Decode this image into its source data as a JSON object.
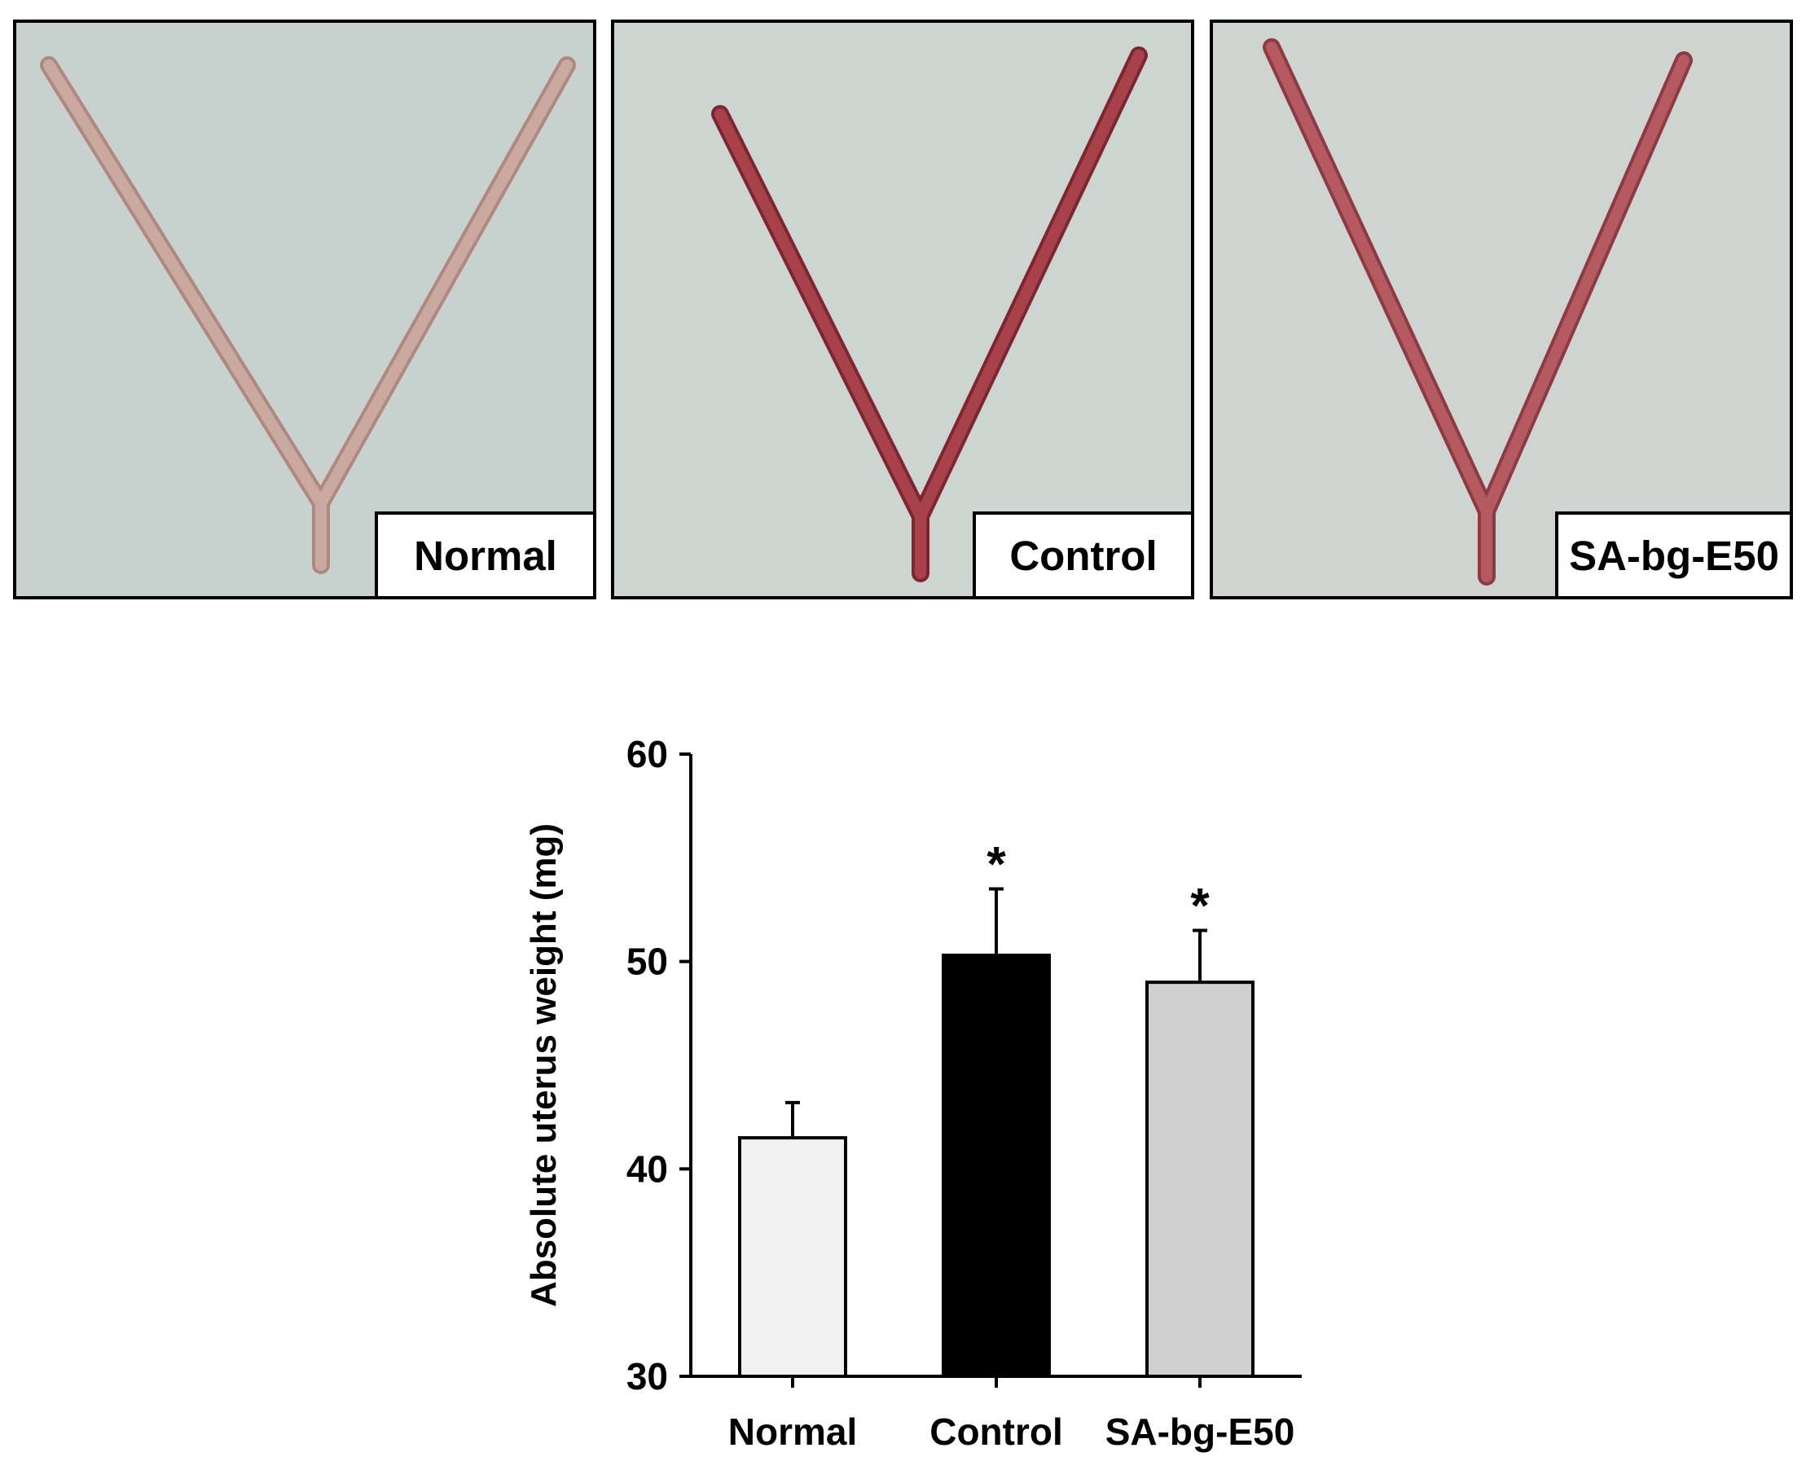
{
  "panels": [
    {
      "label": "Normal",
      "tissue_color": "#c9a9a0",
      "tissue_dark": "#b08880",
      "bg_color": "#c7d1cd"
    },
    {
      "label": "Control",
      "tissue_color": "#a8424a",
      "tissue_dark": "#7d2630",
      "bg_color": "#cdd5d1"
    },
    {
      "label": "SA-bg-E50",
      "tissue_color": "#b45a60",
      "tissue_dark": "#8d3a42",
      "bg_color": "#ced5d1"
    }
  ],
  "chart_data": {
    "type": "bar",
    "categories": [
      "Normal",
      "Control",
      "SA-bg-E50"
    ],
    "values": [
      41.5,
      50.3,
      49.0
    ],
    "errors": [
      1.7,
      3.2,
      2.5
    ],
    "significance": [
      "",
      "*",
      "*"
    ],
    "bar_colors": [
      "#f0f0f0",
      "#000000",
      "#d0d0d0"
    ],
    "ylabel": "Absolute uterus weight (mg)",
    "xlabel": "",
    "ylim": [
      30,
      60
    ],
    "yticks": [
      30,
      40,
      50,
      60
    ],
    "grid": false
  }
}
